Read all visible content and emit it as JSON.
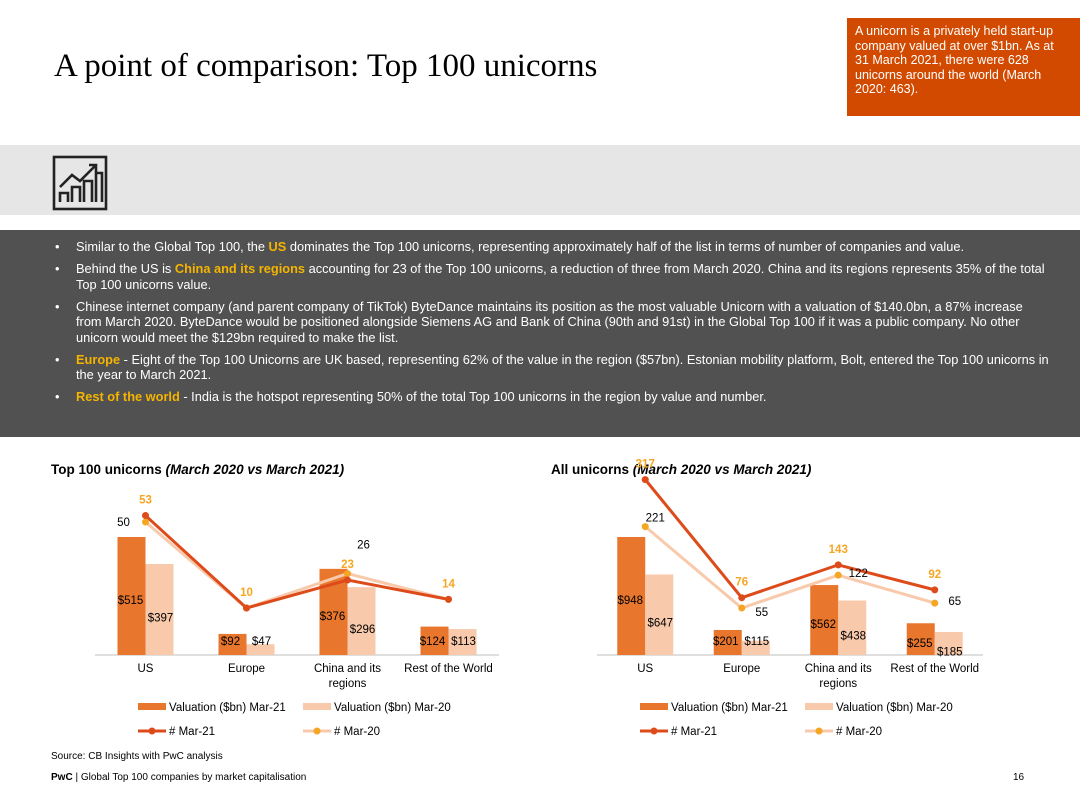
{
  "slide": {
    "title": "A point of comparison: Top 100 unicorns",
    "callout": "A unicorn is a privately held start-up company valued at over $1bn. As at 31 March 2021, there were 628 unicorns around the world (March 2020: 463).",
    "source": "Source: CB Insights with PwC analysis",
    "footer_brand": "PwC",
    "footer_text": " | Global Top 100 companies by market capitalisation",
    "page_number": "16"
  },
  "icon": "growth-chart-icon",
  "bullets": [
    {
      "pre": "Similar to the Global Top 100, the ",
      "hl": "US",
      "post": " dominates the Top 100 unicorns, representing approximately half of the list in terms of number of companies and value."
    },
    {
      "pre": "Behind the US is ",
      "hl": "China and its regions",
      "post": " accounting for 23 of the Top 100 unicorns, a reduction of three from March 2020. China and its regions represents 35% of the total Top 100 unicorns value."
    },
    {
      "pre": "Chinese internet company (and parent company of TikTok) ByteDance maintains its position as the most valuable Unicorn with a valuation of $140.0bn, a 87% increase from March 2020. ByteDance would be positioned alongside Siemens AG and Bank of China (90th and 91st) in the Global Top 100 if it was a public company. No other unicorn would meet the $129bn required to make the list.",
      "hl": "",
      "post": ""
    },
    {
      "pre": "",
      "hl": "Europe",
      "post": " - Eight of the Top 100 Unicorns are UK based, representing 62% of the value in the region ($57bn). Estonian mobility platform, Bolt, entered the Top 100 unicorns in the year to March 2021."
    },
    {
      "pre": "",
      "hl": "Rest of the world",
      "post": " - India is the hotspot representing 50% of  the total Top 100 unicorns in the region by value and number."
    }
  ],
  "colors": {
    "mar21_bar": "#e8762d",
    "mar20_bar": "#f8c9aa",
    "mar21_line": "#de4b1a",
    "mar20_line": "#f8c9aa",
    "marker": "#f5a623",
    "highlight": "#f5b400",
    "callout_bg": "#d24a00"
  },
  "chart_data": [
    {
      "type": "bar",
      "title": "Top 100 unicorns",
      "title_suffix": "(March 2020 vs March 2021)",
      "categories": [
        "US",
        "Europe",
        "China and its regions",
        "Rest of the World"
      ],
      "series": [
        {
          "name": "Valuation ($bn) Mar-21",
          "type": "bar",
          "values": [
            515,
            92,
            376,
            124
          ],
          "labels": [
            "$515",
            "$92",
            "$376",
            "$124"
          ]
        },
        {
          "name": "Valuation ($bn) Mar-20",
          "type": "bar",
          "values": [
            397,
            47,
            296,
            113
          ],
          "labels": [
            "$397",
            "$47",
            "$296",
            "$113"
          ]
        },
        {
          "name": "# Mar-21",
          "type": "line",
          "values": [
            53,
            10,
            23,
            14
          ],
          "labels": [
            "53",
            "10",
            "23",
            "14"
          ]
        },
        {
          "name": "# Mar-20",
          "type": "line",
          "values": [
            50,
            10,
            26,
            14
          ],
          "labels": [
            "50",
            "",
            "26",
            ""
          ]
        }
      ]
    },
    {
      "type": "bar",
      "title": "All unicorns",
      "title_suffix": "(March 2020 vs March 2021)",
      "categories": [
        "US",
        "Europe",
        "China and its regions",
        "Rest of the World"
      ],
      "series": [
        {
          "name": "Valuation ($bn) Mar-21",
          "type": "bar",
          "values": [
            948,
            201,
            562,
            255
          ],
          "labels": [
            "$948",
            "$201",
            "$562",
            "$255"
          ]
        },
        {
          "name": "Valuation ($bn) Mar-20",
          "type": "bar",
          "values": [
            647,
            115,
            438,
            185
          ],
          "labels": [
            "$647",
            "$115",
            "$438",
            "$185"
          ]
        },
        {
          "name": "# Mar-21",
          "type": "line",
          "values": [
            317,
            76,
            143,
            92
          ],
          "labels": [
            "317",
            "76",
            "143",
            "92"
          ]
        },
        {
          "name": "# Mar-20",
          "type": "line",
          "values": [
            221,
            55,
            122,
            65
          ],
          "labels": [
            "221",
            "55",
            "122",
            "65"
          ]
        }
      ]
    }
  ]
}
